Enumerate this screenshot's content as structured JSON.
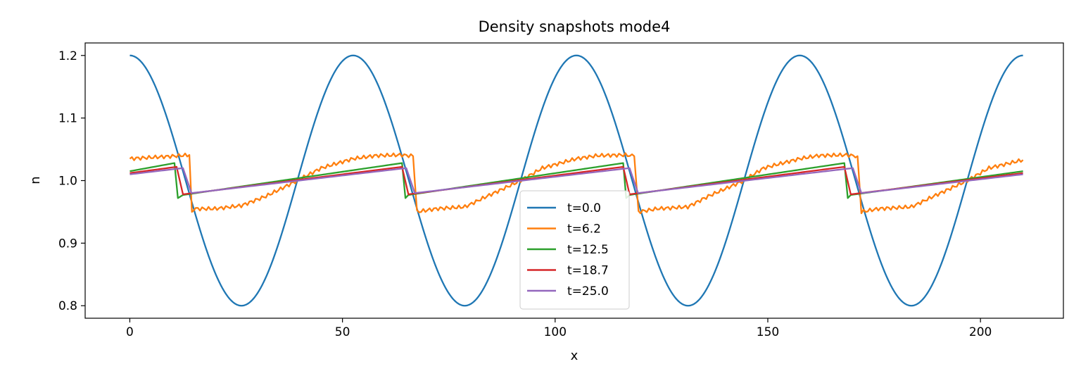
{
  "chart_data": {
    "type": "line",
    "title": "Density snapshots  mode4",
    "xlabel": "x",
    "ylabel": "n",
    "xlim": [
      -10.5,
      219.5
    ],
    "ylim": [
      0.78,
      1.22
    ],
    "xticks": [
      0,
      50,
      100,
      150,
      200
    ],
    "yticks": [
      0.8,
      0.9,
      1.0,
      1.1,
      1.2
    ],
    "xtick_labels": [
      "0",
      "50",
      "100",
      "150",
      "200"
    ],
    "ytick_labels": [
      "0.8",
      "0.9",
      "1.0",
      "1.1",
      "1.2"
    ],
    "grid": false,
    "legend_loc": "lower center",
    "domain_length": 210,
    "series": [
      {
        "name": "t=0.0",
        "color": "#1f77b4",
        "x": [
          0,
          13.1,
          26.2,
          39.4,
          52.5,
          65.6,
          78.8,
          91.9,
          105,
          118.1,
          131.2,
          144.4,
          157.5,
          170.6,
          183.8,
          196.9,
          210
        ],
        "y": [
          1.2,
          1.0,
          0.8,
          1.0,
          1.2,
          1.0,
          0.8,
          1.0,
          1.2,
          1.0,
          0.8,
          1.0,
          1.2,
          1.0,
          0.8,
          1.0,
          1.2
        ]
      },
      {
        "name": "t=6.2",
        "color": "#ff7f0e",
        "x": [
          0,
          5,
          10,
          14,
          14.6,
          15.5,
          20,
          26.2,
          32,
          39.4,
          45,
          52.5,
          58,
          64,
          66.6,
          67.5,
          72,
          78.8,
          84,
          91.9,
          97,
          105,
          110,
          116.5,
          118.6,
          119.6,
          124,
          131.2,
          136,
          144.4,
          149,
          157.5,
          162,
          168.5,
          171.1,
          172,
          176,
          183.8,
          189,
          196.9,
          202,
          210
        ],
        "y": [
          1.035,
          1.037,
          1.039,
          1.041,
          0.95,
          0.955,
          0.955,
          0.96,
          0.975,
          1.0,
          1.02,
          1.035,
          1.04,
          1.041,
          1.039,
          0.95,
          0.955,
          0.958,
          0.975,
          1.0,
          1.02,
          1.035,
          1.04,
          1.041,
          1.039,
          0.95,
          0.955,
          0.958,
          0.975,
          1.0,
          1.02,
          1.035,
          1.04,
          1.041,
          1.039,
          0.95,
          0.955,
          0.958,
          0.975,
          1.0,
          1.02,
          1.033
        ]
      },
      {
        "name": "t=12.5",
        "color": "#2ca02c",
        "x": [
          0,
          10.5,
          11.3,
          12.5,
          64,
          64.8,
          65.5,
          116,
          116.7,
          117.5,
          168,
          168.8,
          169.5,
          210
        ],
        "y": [
          1.015,
          1.028,
          0.972,
          0.977,
          1.028,
          0.972,
          0.977,
          1.028,
          0.972,
          0.977,
          1.028,
          0.972,
          0.977,
          1.015
        ]
      },
      {
        "name": "t=18.7",
        "color": "#d62728",
        "x": [
          0,
          11,
          12.5,
          64,
          65.5,
          116,
          117.5,
          168,
          169.5,
          210
        ],
        "y": [
          1.012,
          1.022,
          0.978,
          1.022,
          0.978,
          1.022,
          0.978,
          1.022,
          0.978,
          1.012
        ]
      },
      {
        "name": "t=25.0",
        "color": "#9467bd",
        "x": [
          0,
          12.5,
          14.5,
          65,
          67,
          117.5,
          119.5,
          170,
          172,
          210
        ],
        "y": [
          1.01,
          1.02,
          0.98,
          1.02,
          0.98,
          1.02,
          0.98,
          1.02,
          0.98,
          1.01
        ]
      }
    ]
  }
}
